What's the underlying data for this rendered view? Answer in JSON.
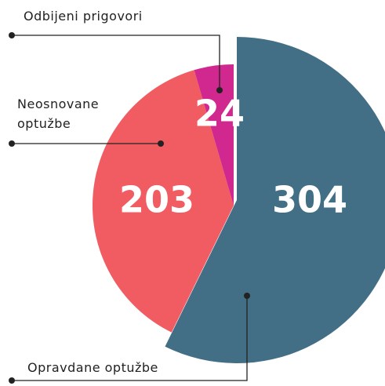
{
  "chart_data": {
    "type": "pie",
    "categories": [
      "Opravdane optužbe",
      "Neosnovane optužbe",
      "Odbijeni prigovori"
    ],
    "values": [
      304,
      203,
      24
    ],
    "colors": [
      "#426f85",
      "#f05c61",
      "#d1288f"
    ]
  }
}
